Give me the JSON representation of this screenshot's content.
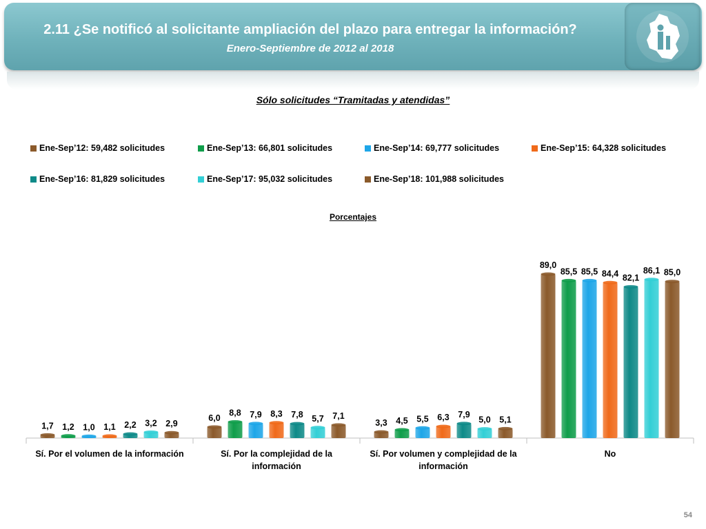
{
  "header": {
    "title": "2.11 ¿Se notificó al solicitante ampliación del plazo para entregar la información?",
    "subtitle": "Enero-Septiembre de 2012 al 2018"
  },
  "logo_icon": "cdmx-map-logo-icon",
  "page_number": "54",
  "chart_data": {
    "type": "bar",
    "title": "Sólo solicitudes “Tramitadas y atendidas”",
    "ylabel": "Porcentajes",
    "ylim": [
      0,
      100
    ],
    "grid": false,
    "legend_position": "top",
    "categories": [
      "Sí. Por el volumen de la información",
      "Sí. Por la complejidad de la información",
      "Sí. Por volumen y complejidad de la información",
      "No"
    ],
    "category_lines": [
      [
        "Sí. Por el volumen de la información"
      ],
      [
        "Sí. Por la complejidad de la",
        "información"
      ],
      [
        "Sí. Por volumen y complejidad de la",
        "información"
      ],
      [
        "No"
      ]
    ],
    "series": [
      {
        "name": "Ene-Sep’12: 59,482 solicitudes",
        "color": "#8b5a2b",
        "values": [
          1.7,
          6.0,
          3.3,
          89.0
        ],
        "labels": [
          "1,7",
          "6,0",
          "3,3",
          "89,0"
        ]
      },
      {
        "name": "Ene-Sep’13: 66,801 solicitudes",
        "color": "#0f9d4a",
        "values": [
          1.2,
          8.8,
          4.5,
          85.5
        ],
        "labels": [
          "1,2",
          "8,8",
          "4,5",
          "85,5"
        ]
      },
      {
        "name": "Ene-Sep’14: 69,777 solicitudes",
        "color": "#1ea6e8",
        "values": [
          1.0,
          7.9,
          5.5,
          85.5
        ],
        "labels": [
          "1,0",
          "7,9",
          "5,5",
          "85,5"
        ]
      },
      {
        "name": "Ene-Sep’15: 64,328 solicitudes",
        "color": "#f06a1a",
        "values": [
          1.1,
          8.3,
          6.3,
          84.4
        ],
        "labels": [
          "1,1",
          "8,3",
          "6,3",
          "84,4"
        ]
      },
      {
        "name": "Ene-Sep’16: 81,829 solicitudes",
        "color": "#0e8a88",
        "values": [
          2.2,
          7.8,
          7.9,
          82.1
        ],
        "labels": [
          "2,2",
          "7,8",
          "7,9",
          "82,1"
        ]
      },
      {
        "name": "Ene-Sep’17: 95,032 solicitudes",
        "color": "#33cfd6",
        "values": [
          3.2,
          5.7,
          5.0,
          86.1
        ],
        "labels": [
          "3,2",
          "5,7",
          "5,0",
          "86,1"
        ]
      },
      {
        "name": "Ene-Sep’18: 101,988 solicitudes",
        "color": "#8b5a2b",
        "values": [
          2.9,
          7.1,
          5.1,
          85.0
        ],
        "labels": [
          "2,9",
          "7,1",
          "5,1",
          "85,0"
        ]
      }
    ]
  }
}
